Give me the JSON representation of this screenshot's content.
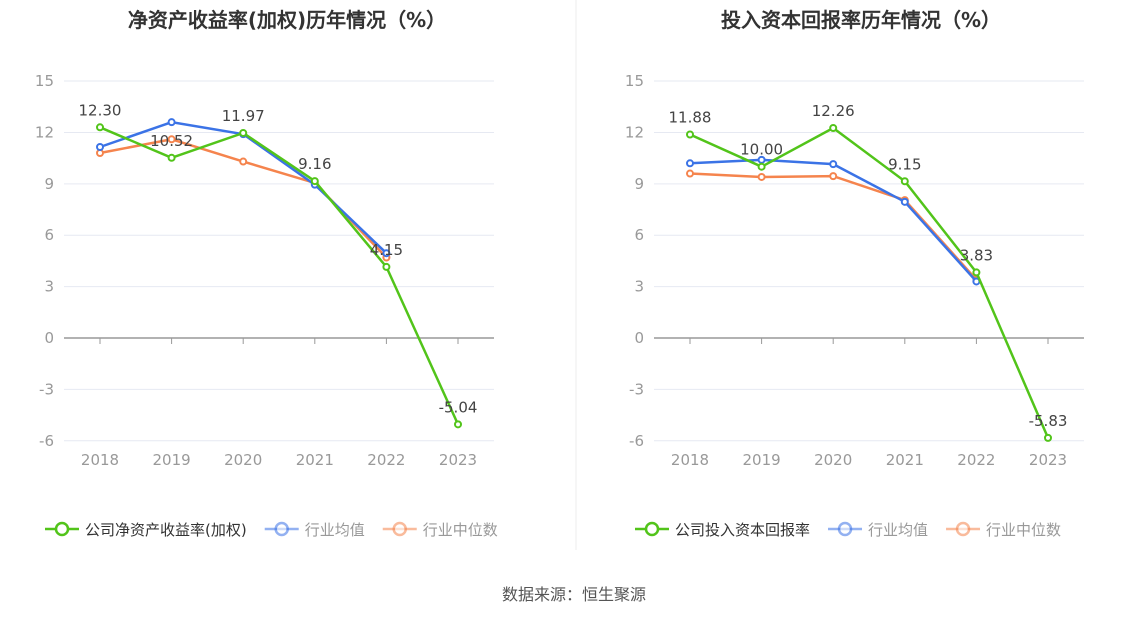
{
  "colors": {
    "company": "#52c41a",
    "avg": "#3b73e6",
    "median": "#f5844d"
  },
  "footer": "数据来源：恒生聚源",
  "chart_data": [
    {
      "type": "line",
      "title": "净资产收益率(加权)历年情况（%）",
      "categories": [
        "2018",
        "2019",
        "2020",
        "2021",
        "2022",
        "2023"
      ],
      "ylim": [
        -6,
        15
      ],
      "yticks": [
        15,
        12,
        9,
        6,
        3,
        0,
        -3,
        -6
      ],
      "grid": true,
      "legend": "bottom",
      "series": [
        {
          "name": "公司净资产收益率(加权)",
          "values": [
            12.3,
            10.52,
            11.97,
            9.16,
            4.15,
            -5.04
          ],
          "labels": [
            "12.30",
            "10.52",
            "11.97",
            "9.16",
            "4.15",
            "-5.04"
          ]
        },
        {
          "name": "行业均值",
          "values": [
            11.15,
            12.6,
            11.9,
            8.95,
            4.95,
            null
          ]
        },
        {
          "name": "行业中位数",
          "values": [
            10.8,
            11.6,
            10.3,
            9.05,
            4.7,
            null
          ]
        }
      ]
    },
    {
      "type": "line",
      "title": "投入资本回报率历年情况（%）",
      "categories": [
        "2018",
        "2019",
        "2020",
        "2021",
        "2022",
        "2023"
      ],
      "ylim": [
        -6,
        15
      ],
      "yticks": [
        15,
        12,
        9,
        6,
        3,
        0,
        -3,
        -6
      ],
      "grid": true,
      "legend": "bottom",
      "series": [
        {
          "name": "公司投入资本回报率",
          "values": [
            11.88,
            10.0,
            12.26,
            9.15,
            3.83,
            -5.83
          ],
          "labels": [
            "11.88",
            "10.00",
            "12.26",
            "9.15",
            "3.83",
            "-5.83"
          ]
        },
        {
          "name": "行业均值",
          "values": [
            10.2,
            10.4,
            10.15,
            7.95,
            3.3,
            null
          ]
        },
        {
          "name": "行业中位数",
          "values": [
            9.6,
            9.4,
            9.45,
            8.05,
            3.4,
            null
          ]
        }
      ]
    }
  ]
}
